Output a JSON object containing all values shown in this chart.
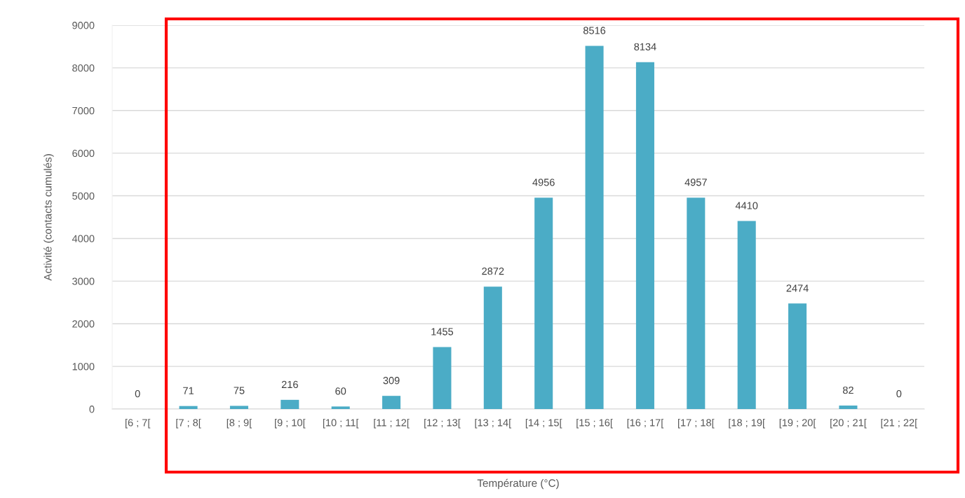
{
  "chart_data": {
    "type": "bar",
    "xlabel": "Température (°C)",
    "ylabel": "Activité (contacts cumulés)",
    "categories": [
      "[6 ; 7[",
      "[7 ; 8[",
      "[8 ; 9[",
      "[9 ; 10[",
      "[10 ; 11[",
      "[11 ; 12[",
      "[12 ; 13[",
      "[13 ; 14[",
      "[14 ; 15[",
      "[15 ; 16[",
      "[16 ; 17[",
      "[17 ; 18[",
      "[18 ; 19[",
      "[19 ; 20[",
      "[20 ; 21[",
      "[21 ; 22["
    ],
    "values": [
      0,
      71,
      75,
      216,
      60,
      309,
      1455,
      2872,
      4956,
      8516,
      8134,
      4957,
      4410,
      2474,
      82,
      0
    ],
    "color": "#4bacc6",
    "ylim": [
      0,
      9000
    ],
    "yticks": [
      0,
      1000,
      2000,
      3000,
      4000,
      5000,
      6000,
      7000,
      8000,
      9000
    ],
    "grid": "y",
    "data_labels": true
  }
}
